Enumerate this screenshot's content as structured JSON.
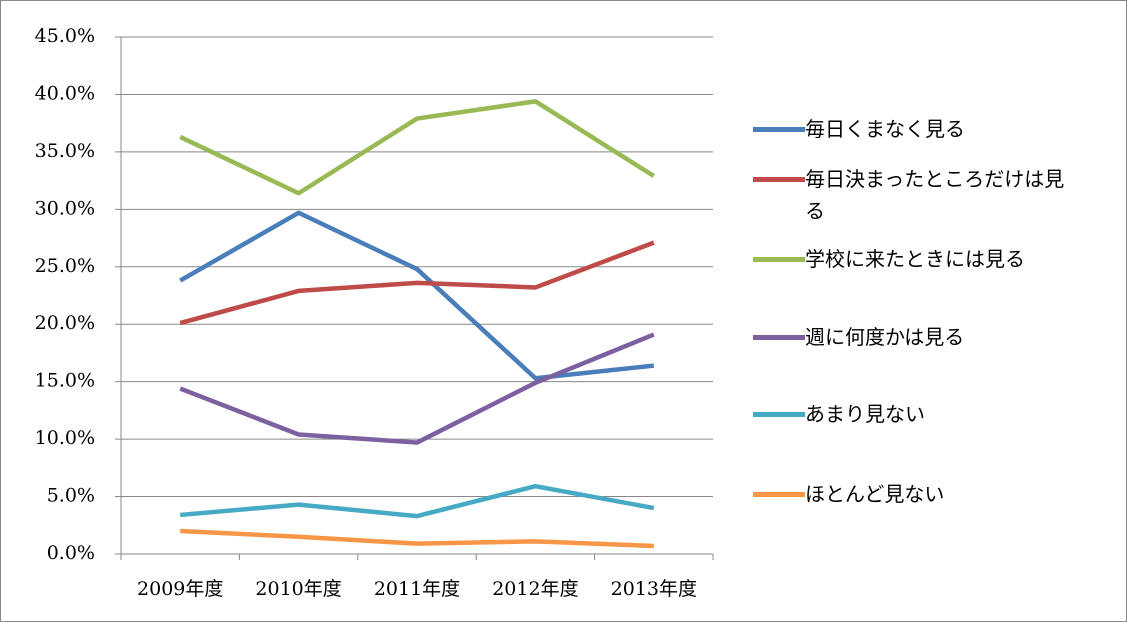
{
  "chart_data": {
    "type": "line",
    "categories": [
      "2009年度",
      "2010年度",
      "2011年度",
      "2012年度",
      "2013年度"
    ],
    "series": [
      {
        "name": "毎日くまなく見る",
        "color": "#4a7ebb",
        "values": [
          23.8,
          29.7,
          24.8,
          15.3,
          16.4
        ]
      },
      {
        "name": "毎日決まったところだけは見る",
        "color": "#be4b48",
        "values": [
          20.1,
          22.9,
          23.6,
          23.2,
          27.1
        ]
      },
      {
        "name": "学校に来たときには見る",
        "color": "#98b954",
        "values": [
          36.3,
          31.4,
          37.9,
          39.4,
          32.9
        ]
      },
      {
        "name": "週に何度かは見る",
        "color": "#7d60a0",
        "values": [
          14.4,
          10.4,
          9.7,
          14.9,
          19.1
        ]
      },
      {
        "name": "あまり見ない",
        "color": "#46aac5",
        "values": [
          3.4,
          4.3,
          3.3,
          5.9,
          4.0
        ]
      },
      {
        "name": "ほとんど見ない",
        "color": "#f79646",
        "values": [
          2.0,
          1.5,
          0.9,
          1.1,
          0.7
        ]
      }
    ],
    "ylim": [
      0,
      45
    ],
    "yticks": [
      {
        "value": 0,
        "label": "0.0%"
      },
      {
        "value": 5,
        "label": "5.0%"
      },
      {
        "value": 10,
        "label": "10.0%"
      },
      {
        "value": 15,
        "label": "15.0%"
      },
      {
        "value": 20,
        "label": "20.0%"
      },
      {
        "value": 25,
        "label": "25.0%"
      },
      {
        "value": 30,
        "label": "30.0%"
      },
      {
        "value": 35,
        "label": "35.0%"
      },
      {
        "value": 40,
        "label": "40.0%"
      },
      {
        "value": 45,
        "label": "45.0%"
      }
    ],
    "grid": true,
    "legend": "right"
  }
}
